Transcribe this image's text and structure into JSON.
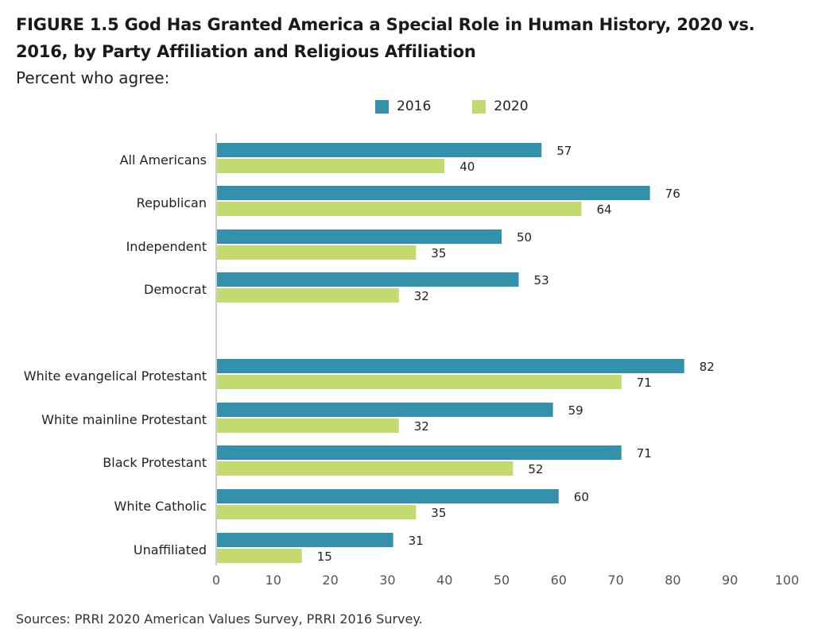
{
  "title": "FIGURE 1.5  God Has Granted America a Special Role in Human History, 2020 vs. 2016, by Party Affiliation and Religious Affiliation",
  "subtitle": "Percent who agree:",
  "source": "Sources: PRRI 2020 American Values Survey, PRRI 2016 Survey.",
  "colors": {
    "s2016": "#3391ac",
    "s2020": "#c2da6e",
    "axis": "#cfcfcf",
    "text": "#222222"
  },
  "chart_data": {
    "type": "bar",
    "orientation": "horizontal",
    "categories": [
      "All Americans",
      "Republican",
      "Independent",
      "Democrat",
      "White evangelical Protestant",
      "White mainline Protestant",
      "Black Protestant",
      "White Catholic",
      "Unaffiliated"
    ],
    "series": [
      {
        "name": "2016",
        "values": [
          57,
          76,
          50,
          53,
          82,
          59,
          71,
          60,
          31
        ]
      },
      {
        "name": "2020",
        "values": [
          40,
          64,
          35,
          32,
          71,
          32,
          52,
          35,
          15
        ]
      }
    ],
    "xlim": [
      0,
      100
    ],
    "xticks": [
      "0",
      "10",
      "20",
      "30",
      "40",
      "50",
      "60",
      "70",
      "80",
      "90",
      "100"
    ],
    "xlabel": "",
    "ylabel": "",
    "grid": false,
    "legend": "top",
    "data_labels": true
  }
}
